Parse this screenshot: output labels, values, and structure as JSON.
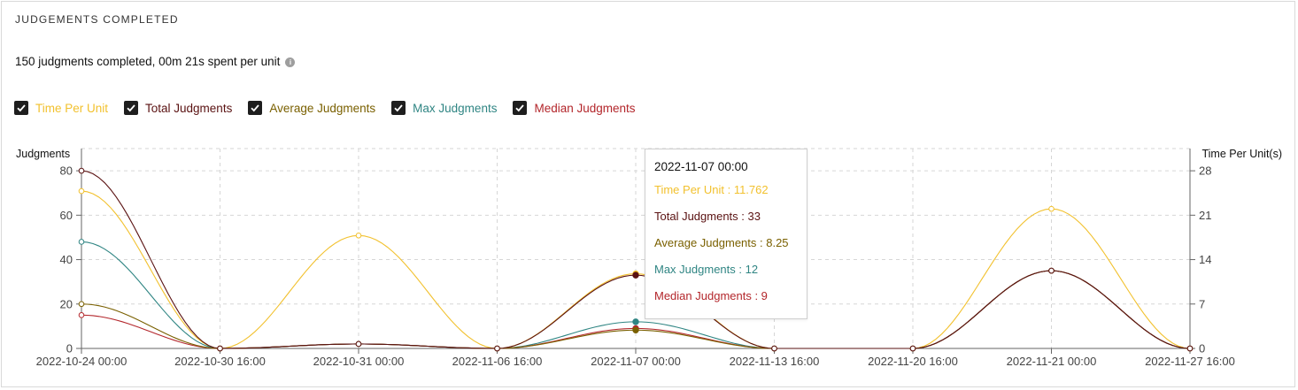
{
  "panel": {
    "title": "JUDGEMENTS COMPLETED",
    "summary": "150 judgments completed, 00m 21s spent per unit",
    "info_icon": "info-icon"
  },
  "legend": [
    {
      "label": "Time Per Unit",
      "color": "#f2c12e",
      "checked": true
    },
    {
      "label": "Total Judgments",
      "color": "#5a1212",
      "checked": true
    },
    {
      "label": "Average Judgments",
      "color": "#7a6000",
      "checked": true
    },
    {
      "label": "Max Judgments",
      "color": "#2f8583",
      "checked": true
    },
    {
      "label": "Median Judgments",
      "color": "#b3262b",
      "checked": true
    }
  ],
  "chart_data": {
    "type": "line",
    "ylabel": "Judgments",
    "y2label": "Time Per Unit(s)",
    "x": [
      "2022-10-24 00:00",
      "2022-10-30 16:00",
      "2022-10-31 00:00",
      "2022-11-06 16:00",
      "2022-11-07 00:00",
      "2022-11-13 16:00",
      "2022-11-20 16:00",
      "2022-11-21 00:00",
      "2022-11-27 16:00"
    ],
    "ylim": [
      0,
      90
    ],
    "yticks": [
      "0",
      "20",
      "40",
      "60",
      "80"
    ],
    "y2lim": [
      0,
      31.5
    ],
    "y2ticks": [
      "0",
      "7",
      "14",
      "21",
      "28"
    ],
    "grid": true,
    "smooth": true,
    "series": [
      {
        "name": "Time Per Unit",
        "axis": "right",
        "color": "#f2c12e",
        "values": [
          24.8,
          0,
          17.8,
          0,
          11.762,
          0,
          0,
          22.0,
          0
        ]
      },
      {
        "name": "Total Judgments",
        "axis": "left",
        "color": "#5a1212",
        "values": [
          80,
          0,
          2,
          0,
          33,
          0,
          0,
          35,
          0
        ]
      },
      {
        "name": "Average Judgments",
        "axis": "left",
        "color": "#7a6000",
        "values": [
          20,
          0,
          2,
          0,
          8.25,
          0,
          0,
          35,
          0
        ]
      },
      {
        "name": "Max Judgments",
        "axis": "left",
        "color": "#2f8583",
        "values": [
          48,
          0,
          2,
          0,
          12,
          0,
          0,
          35,
          0
        ]
      },
      {
        "name": "Median Judgments",
        "axis": "left",
        "color": "#b3262b",
        "values": [
          15,
          0,
          2,
          0,
          9,
          0,
          0,
          35,
          0
        ]
      }
    ],
    "highlight_index": 4
  },
  "tooltip": {
    "title": "2022-11-07 00:00",
    "rows": [
      {
        "text": "Time Per Unit : 11.762",
        "color": "#f2c12e"
      },
      {
        "text": "Total Judgments : 33",
        "color": "#5a1212"
      },
      {
        "text": "Average Judgments : 8.25",
        "color": "#7a6000"
      },
      {
        "text": "Max Judgments : 12",
        "color": "#2f8583"
      },
      {
        "text": "Median Judgments : 9",
        "color": "#b3262b"
      }
    ]
  }
}
